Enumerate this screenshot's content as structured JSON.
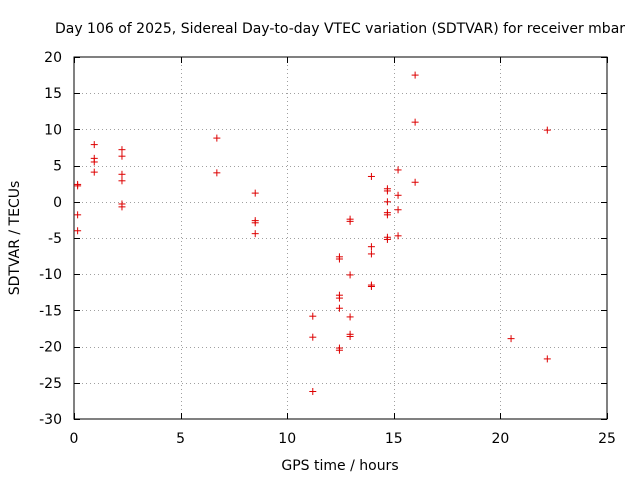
{
  "chart_data": {
    "type": "scatter",
    "title": "Day 106 of 2025, Sidereal Day-to-day VTEC variation (SDTVAR) for receiver mbar",
    "xlabel": "GPS time / hours",
    "ylabel": "SDTVAR / TECUs",
    "xlim": [
      0,
      25
    ],
    "ylim": [
      -30,
      20
    ],
    "xticks": [
      0,
      5,
      10,
      15,
      20,
      25
    ],
    "yticks": [
      -30,
      -25,
      -20,
      -15,
      -10,
      -5,
      0,
      5,
      10,
      15,
      20
    ],
    "xtick_labels": [
      "0",
      "5",
      "10",
      "15",
      "20",
      "25"
    ],
    "ytick_labels": [
      "-30",
      "-25",
      "-20",
      "-15",
      "-10",
      "-5",
      "0",
      "5",
      "10",
      "15",
      "20"
    ],
    "grid": true,
    "marker": "+",
    "marker_color": "#dd0000",
    "series": [
      {
        "name": "SDTVAR",
        "points": [
          {
            "x": 0.17,
            "y": 2.4
          },
          {
            "x": 0.17,
            "y": 2.2
          },
          {
            "x": 0.17,
            "y": -1.8
          },
          {
            "x": 0.17,
            "y": -4.0
          },
          {
            "x": 0.95,
            "y": 7.9
          },
          {
            "x": 0.95,
            "y": 6.0
          },
          {
            "x": 0.95,
            "y": 5.5
          },
          {
            "x": 0.95,
            "y": 4.1
          },
          {
            "x": 2.25,
            "y": 7.2
          },
          {
            "x": 2.25,
            "y": 6.3
          },
          {
            "x": 2.25,
            "y": 3.8
          },
          {
            "x": 2.25,
            "y": 2.9
          },
          {
            "x": 2.25,
            "y": -0.3
          },
          {
            "x": 2.25,
            "y": -0.7
          },
          {
            "x": 6.7,
            "y": 8.8
          },
          {
            "x": 6.7,
            "y": 4.0
          },
          {
            "x": 8.5,
            "y": 1.2
          },
          {
            "x": 8.5,
            "y": -2.6
          },
          {
            "x": 8.5,
            "y": -2.9
          },
          {
            "x": 8.5,
            "y": -4.4
          },
          {
            "x": 11.2,
            "y": -15.8
          },
          {
            "x": 11.2,
            "y": -18.7
          },
          {
            "x": 11.2,
            "y": -26.2
          },
          {
            "x": 12.45,
            "y": -7.6
          },
          {
            "x": 12.45,
            "y": -7.9
          },
          {
            "x": 12.45,
            "y": -12.9
          },
          {
            "x": 12.45,
            "y": -13.3
          },
          {
            "x": 12.45,
            "y": -14.7
          },
          {
            "x": 12.45,
            "y": -20.2
          },
          {
            "x": 12.45,
            "y": -20.5
          },
          {
            "x": 12.95,
            "y": -2.4
          },
          {
            "x": 12.95,
            "y": -2.7
          },
          {
            "x": 12.95,
            "y": -10.1
          },
          {
            "x": 12.95,
            "y": -15.9
          },
          {
            "x": 12.95,
            "y": -18.3
          },
          {
            "x": 12.95,
            "y": -18.6
          },
          {
            "x": 13.95,
            "y": 3.5
          },
          {
            "x": 13.95,
            "y": -6.2
          },
          {
            "x": 13.95,
            "y": -7.2
          },
          {
            "x": 13.95,
            "y": -11.5
          },
          {
            "x": 13.95,
            "y": -11.7
          },
          {
            "x": 14.7,
            "y": 1.8
          },
          {
            "x": 14.7,
            "y": 1.5
          },
          {
            "x": 14.7,
            "y": 0.0
          },
          {
            "x": 14.7,
            "y": -1.5
          },
          {
            "x": 14.7,
            "y": -1.8
          },
          {
            "x": 14.7,
            "y": -4.9
          },
          {
            "x": 14.7,
            "y": -5.2
          },
          {
            "x": 15.2,
            "y": 4.4
          },
          {
            "x": 15.2,
            "y": 0.9
          },
          {
            "x": 15.2,
            "y": -1.1
          },
          {
            "x": 15.2,
            "y": -4.7
          },
          {
            "x": 16.0,
            "y": 17.5
          },
          {
            "x": 16.0,
            "y": 11.0
          },
          {
            "x": 16.0,
            "y": 2.7
          },
          {
            "x": 20.5,
            "y": -18.9
          },
          {
            "x": 22.2,
            "y": 9.9
          },
          {
            "x": 22.2,
            "y": -21.7
          }
        ]
      }
    ]
  }
}
